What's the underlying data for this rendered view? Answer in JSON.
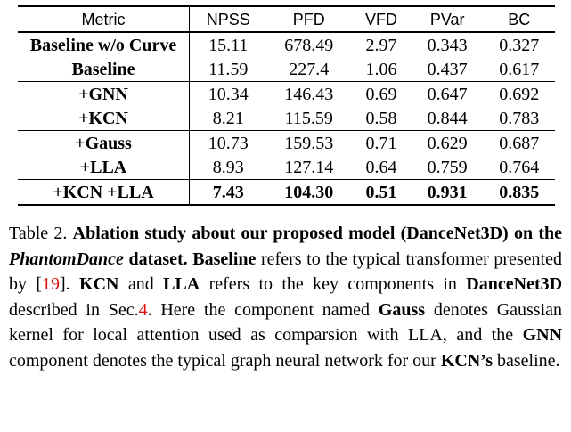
{
  "table": {
    "headers": [
      "Metric",
      "NPSS",
      "PFD",
      "VFD",
      "PVar",
      "BC"
    ],
    "rows": [
      {
        "metric": "Baseline w/o Curve",
        "values": [
          "15.11",
          "678.49",
          "2.97",
          "0.343",
          "0.327"
        ]
      },
      {
        "metric": "Baseline",
        "values": [
          "11.59",
          "227.4",
          "1.06",
          "0.437",
          "0.617"
        ]
      },
      {
        "metric": "+GNN",
        "values": [
          "10.34",
          "146.43",
          "0.69",
          "0.647",
          "0.692"
        ]
      },
      {
        "metric": "+KCN",
        "values": [
          "8.21",
          "115.59",
          "0.58",
          "0.844",
          "0.783"
        ]
      },
      {
        "metric": "+Gauss",
        "values": [
          "10.73",
          "159.53",
          "0.71",
          "0.629",
          "0.687"
        ]
      },
      {
        "metric": "+LLA",
        "values": [
          "8.93",
          "127.14",
          "0.64",
          "0.759",
          "0.764"
        ]
      },
      {
        "metric": "+KCN +LLA",
        "values": [
          "7.43",
          "104.30",
          "0.51",
          "0.931",
          "0.835"
        ]
      }
    ]
  },
  "caption": {
    "label": "Table 2.",
    "title_bold_1": "Ablation study about our proposed model (DanceNet3D) on the",
    "title_italic": "PhantomDance",
    "title_bold_2": "dataset.",
    "b_baseline": "Baseline",
    "t1": "refers to the typical transformer presented by [",
    "ref19": "19",
    "t2": "].",
    "b_kcn": "KCN",
    "t3": "and",
    "b_lla": "LLA",
    "t4": "refers to the key components in",
    "b_dancenet": "DanceNet3D",
    "t5": "described in Sec.",
    "ref4": "4",
    "t6": ". Here the component named",
    "b_gauss": "Gauss",
    "t7": "denotes Gaussian kernel for local attention used as comparsion with LLA, and the",
    "b_gnn": "GNN",
    "t8": "component denotes the typical graph neural network for our",
    "b_kcns": "KCN’s",
    "t9": "baseline."
  }
}
